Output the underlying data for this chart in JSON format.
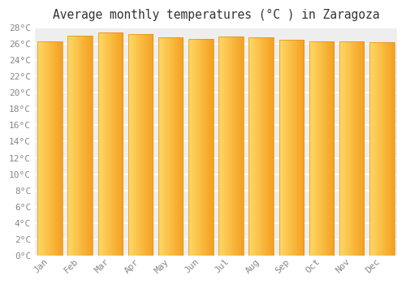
{
  "title": "Average monthly temperatures (°C ) in Zaragoza",
  "months": [
    "Jan",
    "Feb",
    "Mar",
    "Apr",
    "May",
    "Jun",
    "Jul",
    "Aug",
    "Sep",
    "Oct",
    "Nov",
    "Dec"
  ],
  "values": [
    26.3,
    27.0,
    27.4,
    27.2,
    26.8,
    26.6,
    26.9,
    26.8,
    26.5,
    26.3,
    26.3,
    26.2
  ],
  "bar_color_left": "#FFD966",
  "bar_color_right": "#F4A020",
  "bar_edge_color": "#E09010",
  "background_color": "#ffffff",
  "plot_bg_color": "#eeeeee",
  "grid_color": "#ffffff",
  "tick_color": "#888888",
  "title_color": "#333333",
  "ylim": [
    0,
    28
  ],
  "ytick_step": 2,
  "title_fontsize": 10.5,
  "tick_fontsize": 8,
  "font_family": "monospace",
  "bar_width": 0.82
}
